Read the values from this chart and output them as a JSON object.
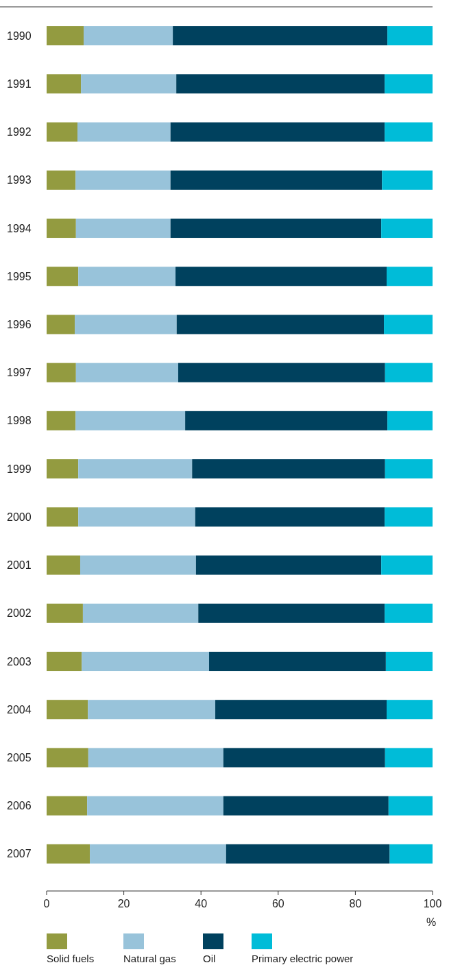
{
  "chart_data": {
    "type": "bar",
    "orientation": "horizontal",
    "stacked": true,
    "xlabel": "%",
    "categories": [
      "1990",
      "1991",
      "1992",
      "1993",
      "1994",
      "1995",
      "1996",
      "1997",
      "1998",
      "1999",
      "2000",
      "2001",
      "2002",
      "2003",
      "2004",
      "2005",
      "2006",
      "2007"
    ],
    "series": [
      {
        "name": "Solid fuels",
        "color": "#939b40",
        "values": [
          9.6,
          8.9,
          8.0,
          7.5,
          7.6,
          8.2,
          7.3,
          7.6,
          7.5,
          8.2,
          8.2,
          8.7,
          9.4,
          9.1,
          10.7,
          10.8,
          10.5,
          11.2
        ]
      },
      {
        "name": "Natural gas",
        "color": "#98c3da",
        "values": [
          23.1,
          24.7,
          24.1,
          24.6,
          24.5,
          25.2,
          26.4,
          26.5,
          28.4,
          29.5,
          30.3,
          30.0,
          29.9,
          33.0,
          33.0,
          35.0,
          35.3,
          35.3
        ]
      },
      {
        "name": "Oil",
        "color": "#00415e",
        "values": [
          55.6,
          54.0,
          55.5,
          54.8,
          54.6,
          54.7,
          53.7,
          53.6,
          52.4,
          50.0,
          49.1,
          48.0,
          48.3,
          45.8,
          44.4,
          41.9,
          42.8,
          42.4
        ]
      },
      {
        "name": "Primary electric power",
        "color": "#00bcd8",
        "values": [
          11.7,
          12.4,
          12.4,
          13.1,
          13.3,
          11.9,
          12.6,
          12.3,
          11.7,
          12.3,
          12.4,
          13.3,
          12.4,
          12.1,
          11.9,
          12.3,
          11.4,
          11.1
        ]
      }
    ],
    "xlim": [
      0,
      100
    ],
    "xticks": [
      0,
      20,
      40,
      60,
      80,
      100
    ],
    "grid": false,
    "legend": "bottom"
  }
}
